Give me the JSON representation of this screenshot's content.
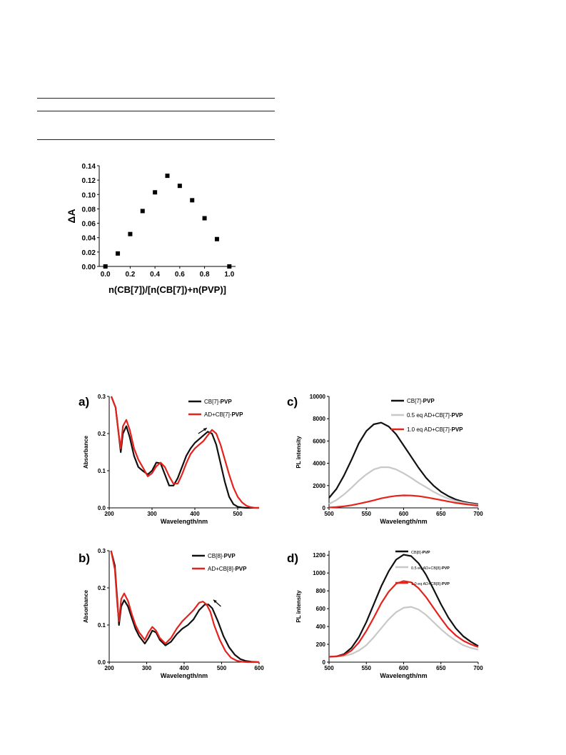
{
  "chart_data": [
    {
      "id": "job",
      "type": "scatter",
      "ylabel": "ΔA",
      "xlabel": "n(CB[7])/[n(CB[7])+n(PVP)]",
      "xlim": [
        -0.05,
        1.05
      ],
      "ylim": [
        0,
        0.14
      ],
      "xticks": [
        "0.0",
        "0.2",
        "0.4",
        "0.6",
        "0.8",
        "1.0"
      ],
      "yticks": [
        "0.00",
        "0.02",
        "0.04",
        "0.06",
        "0.08",
        "0.10",
        "0.12",
        "0.14"
      ],
      "x": [
        0.0,
        0.1,
        0.2,
        0.3,
        0.4,
        0.5,
        0.6,
        0.7,
        0.8,
        0.9,
        1.0
      ],
      "y": [
        0.0,
        0.018,
        0.045,
        0.077,
        0.103,
        0.126,
        0.112,
        0.092,
        0.067,
        0.038,
        0.0
      ],
      "marker": "square",
      "color": "#000000"
    },
    {
      "id": "a",
      "panel_label": "a)",
      "type": "line",
      "xlabel": "Wavelength/nm",
      "ylabel": "Absorbance",
      "xlim": [
        200,
        550
      ],
      "ylim": [
        0,
        0.3
      ],
      "xticks": [
        "200",
        "300",
        "400",
        "500"
      ],
      "yticks": [
        "0.0",
        "0.1",
        "0.2",
        "0.3"
      ],
      "legend": "top-right",
      "arrow": {
        "from": [
          408,
          0.2
        ],
        "to": [
          428,
          0.215
        ]
      },
      "series": [
        {
          "name_plain": "CB[7]-",
          "name_bold": "PVP",
          "color": "#111111",
          "x": [
            205,
            215,
            222,
            227,
            232,
            240,
            248,
            258,
            268,
            278,
            290,
            300,
            310,
            320,
            330,
            340,
            350,
            360,
            370,
            380,
            390,
            400,
            410,
            420,
            430,
            440,
            450,
            460,
            470,
            480,
            490,
            500,
            510,
            520,
            530,
            540,
            550
          ],
          "y": [
            0.3,
            0.27,
            0.2,
            0.15,
            0.2,
            0.22,
            0.19,
            0.14,
            0.11,
            0.1,
            0.09,
            0.1,
            0.122,
            0.12,
            0.09,
            0.06,
            0.06,
            0.08,
            0.11,
            0.14,
            0.16,
            0.175,
            0.185,
            0.195,
            0.205,
            0.2,
            0.17,
            0.12,
            0.07,
            0.03,
            0.01,
            0.003,
            0.001,
            0,
            0,
            0,
            0
          ]
        },
        {
          "name_plain": "AD+CB[7]-",
          "name_bold": "PVP",
          "color": "#e5221c",
          "x": [
            205,
            215,
            222,
            227,
            232,
            240,
            248,
            258,
            268,
            278,
            290,
            300,
            310,
            320,
            330,
            340,
            350,
            360,
            370,
            380,
            390,
            400,
            410,
            420,
            430,
            440,
            450,
            460,
            470,
            480,
            490,
            500,
            510,
            520,
            530,
            540,
            550
          ],
          "y": [
            0.3,
            0.27,
            0.2,
            0.16,
            0.22,
            0.237,
            0.21,
            0.16,
            0.13,
            0.11,
            0.085,
            0.093,
            0.112,
            0.122,
            0.11,
            0.085,
            0.065,
            0.065,
            0.09,
            0.12,
            0.145,
            0.16,
            0.17,
            0.18,
            0.195,
            0.21,
            0.2,
            0.17,
            0.13,
            0.09,
            0.055,
            0.03,
            0.015,
            0.006,
            0.002,
            0,
            0
          ]
        }
      ]
    },
    {
      "id": "b",
      "panel_label": "b)",
      "type": "line",
      "xlabel": "Wavelength/nm",
      "ylabel": "Absorbance",
      "xlim": [
        200,
        600
      ],
      "ylim": [
        0,
        0.3
      ],
      "xticks": [
        "200",
        "300",
        "400",
        "500",
        "600"
      ],
      "yticks": [
        "0.0",
        "0.1",
        "0.2",
        "0.3"
      ],
      "legend": "top-right",
      "arrow": {
        "from": [
          498,
          0.15
        ],
        "to": [
          478,
          0.168
        ]
      },
      "series": [
        {
          "name_plain": "CB[8]-",
          "name_bold": "PVP",
          "color": "#111111",
          "x": [
            205,
            215,
            222,
            226,
            232,
            240,
            250,
            260,
            270,
            280,
            295,
            305,
            315,
            325,
            335,
            350,
            365,
            380,
            395,
            410,
            425,
            440,
            455,
            465,
            475,
            490,
            505,
            520,
            535,
            550,
            565,
            580,
            600
          ],
          "y": [
            0.3,
            0.26,
            0.16,
            0.1,
            0.15,
            0.167,
            0.15,
            0.12,
            0.09,
            0.07,
            0.05,
            0.065,
            0.085,
            0.08,
            0.06,
            0.045,
            0.055,
            0.075,
            0.09,
            0.1,
            0.115,
            0.14,
            0.155,
            0.155,
            0.145,
            0.11,
            0.07,
            0.04,
            0.02,
            0.008,
            0.003,
            0.001,
            0
          ]
        },
        {
          "name_plain": "AD+CB[8]-",
          "name_bold": "PVP",
          "color": "#e5221c",
          "x": [
            205,
            215,
            222,
            226,
            232,
            240,
            250,
            260,
            270,
            280,
            295,
            305,
            315,
            325,
            335,
            350,
            365,
            380,
            395,
            410,
            425,
            440,
            450,
            460,
            470,
            480,
            495,
            510,
            525,
            540,
            555,
            570,
            600
          ],
          "y": [
            0.3,
            0.25,
            0.15,
            0.11,
            0.17,
            0.185,
            0.165,
            0.13,
            0.1,
            0.08,
            0.06,
            0.08,
            0.095,
            0.085,
            0.065,
            0.05,
            0.065,
            0.09,
            0.11,
            0.125,
            0.14,
            0.16,
            0.163,
            0.155,
            0.135,
            0.1,
            0.06,
            0.03,
            0.012,
            0.004,
            0.001,
            0,
            0
          ]
        }
      ]
    },
    {
      "id": "c",
      "panel_label": "c)",
      "type": "line",
      "xlabel": "Wavelength/nm",
      "ylabel": "PL intensity",
      "xlim": [
        500,
        700
      ],
      "ylim": [
        0,
        10000
      ],
      "xticks": [
        "500",
        "550",
        "600",
        "650",
        "700"
      ],
      "yticks": [
        "0",
        "2000",
        "4000",
        "6000",
        "8000",
        "10000"
      ],
      "legend": "top-right",
      "series": [
        {
          "name_plain": "CB[7]-",
          "name_bold": "PVP",
          "color": "#111111",
          "x": [
            500,
            510,
            520,
            530,
            540,
            550,
            560,
            570,
            580,
            590,
            600,
            610,
            620,
            630,
            640,
            650,
            660,
            670,
            680,
            690,
            700
          ],
          "y": [
            900,
            1700,
            2900,
            4300,
            5800,
            6900,
            7500,
            7650,
            7300,
            6600,
            5600,
            4600,
            3600,
            2700,
            2000,
            1450,
            1050,
            750,
            550,
            420,
            330
          ]
        },
        {
          "name_plain": "0.5 eq AD+CB[7]-",
          "name_bold": "PVP",
          "color": "#c8c8c8",
          "x": [
            500,
            510,
            520,
            530,
            540,
            550,
            560,
            570,
            580,
            590,
            600,
            610,
            620,
            630,
            640,
            650,
            660,
            670,
            680,
            690,
            700
          ],
          "y": [
            350,
            700,
            1200,
            1800,
            2450,
            3000,
            3450,
            3650,
            3650,
            3450,
            3100,
            2700,
            2250,
            1850,
            1450,
            1100,
            830,
            620,
            470,
            350,
            260
          ]
        },
        {
          "name_plain": "1.0 eq AD+CB[7]-",
          "name_bold": "PVP",
          "color": "#e5221c",
          "x": [
            500,
            510,
            520,
            530,
            540,
            550,
            560,
            570,
            580,
            590,
            600,
            610,
            620,
            630,
            640,
            650,
            660,
            670,
            680,
            690,
            700
          ],
          "y": [
            30,
            70,
            140,
            240,
            370,
            520,
            680,
            850,
            980,
            1080,
            1120,
            1110,
            1050,
            950,
            830,
            700,
            570,
            450,
            350,
            270,
            200
          ]
        }
      ]
    },
    {
      "id": "d",
      "panel_label": "d)",
      "type": "line",
      "xlabel": "Wavelength/nm",
      "ylabel": "PL intensity",
      "xlim": [
        500,
        700
      ],
      "ylim": [
        0,
        1250
      ],
      "xticks": [
        "500",
        "550",
        "600",
        "650",
        "700"
      ],
      "yticks": [
        "0",
        "200",
        "400",
        "600",
        "800",
        "1000",
        "1200"
      ],
      "legend": "top-right",
      "series": [
        {
          "name_plain": "CB[8]-",
          "name_bold": "PVP",
          "color": "#111111",
          "x": [
            500,
            510,
            520,
            530,
            540,
            550,
            560,
            570,
            580,
            590,
            600,
            610,
            620,
            630,
            640,
            650,
            660,
            670,
            680,
            690,
            700
          ],
          "y": [
            60,
            65,
            90,
            160,
            280,
            450,
            650,
            850,
            1020,
            1150,
            1205,
            1190,
            1110,
            980,
            820,
            650,
            500,
            380,
            290,
            230,
            180
          ]
        },
        {
          "name_plain": "0.5 eq AD+CB[8]-",
          "name_bold": "PVP",
          "color": "#c8c8c8",
          "x": [
            500,
            510,
            520,
            530,
            540,
            550,
            560,
            570,
            580,
            590,
            600,
            610,
            620,
            630,
            640,
            650,
            660,
            670,
            680,
            690,
            700
          ],
          "y": [
            60,
            62,
            70,
            90,
            130,
            190,
            280,
            380,
            480,
            560,
            610,
            620,
            590,
            530,
            450,
            370,
            300,
            240,
            190,
            160,
            140
          ]
        },
        {
          "name_plain": "1.0 eq AD+CB[8]-",
          "name_bold": "PVP",
          "color": "#e5221c",
          "x": [
            500,
            510,
            520,
            530,
            540,
            550,
            560,
            570,
            580,
            590,
            600,
            610,
            620,
            630,
            640,
            650,
            660,
            670,
            680,
            690,
            700
          ],
          "y": [
            60,
            64,
            80,
            130,
            220,
            350,
            500,
            660,
            790,
            880,
            910,
            895,
            830,
            730,
            610,
            490,
            380,
            300,
            240,
            200,
            170
          ]
        }
      ]
    }
  ]
}
